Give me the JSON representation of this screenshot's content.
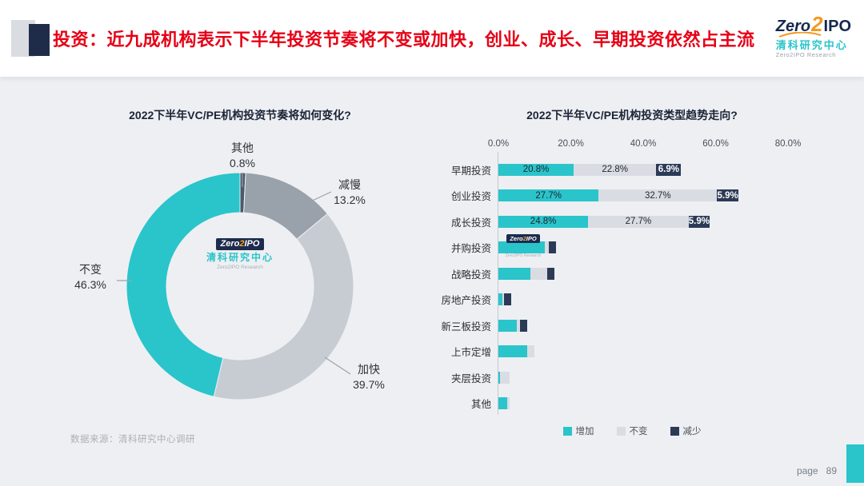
{
  "header": {
    "title": "投资：近九成机构表示下半年投资节奏将不变或加快，创业、成长、早期投资依然占主流",
    "logo": {
      "zero": "Zero",
      "two": "2",
      "ipo": "IPO",
      "cn": "清科研究中心",
      "en": "Zero2IPO Research"
    }
  },
  "footer": {
    "source": "数据来源：清科研究中心调研",
    "page_label": "page",
    "page_number": "89"
  },
  "colors": {
    "title_red": "#e60016",
    "teal": "#2ac4cb",
    "light_gray": "#d9dde3",
    "mid_gray": "#99a1aa",
    "navy": "#2c3a56",
    "slide_bg": "#edeff2"
  },
  "chart_data": [
    {
      "type": "pie",
      "subtype": "donut",
      "title": "2022下半年VC/PE机构投资节奏将如何变化?",
      "start_angle_deg": 0,
      "direction": "clockwise",
      "slices": [
        {
          "label": "其他",
          "value": 0.8,
          "pct_label": "0.8%",
          "color": "#4a5a6e"
        },
        {
          "label": "减慢",
          "value": 13.2,
          "pct_label": "13.2%",
          "color": "#99a1aa"
        },
        {
          "label": "加快",
          "value": 39.7,
          "pct_label": "39.7%",
          "color": "#c7ccd3"
        },
        {
          "label": "不变",
          "value": 46.3,
          "pct_label": "46.3%",
          "color": "#2ac4cb"
        }
      ]
    },
    {
      "type": "bar",
      "orientation": "horizontal",
      "stacked": true,
      "title": "2022下半年VC/PE机构投资类型趋势走向?",
      "x_axis": {
        "ticks": [
          "0.0%",
          "20.0%",
          "40.0%",
          "60.0%",
          "80.0%"
        ],
        "max": 80
      },
      "legend": [
        "增加",
        "不变",
        "减少"
      ],
      "series_colors": [
        "#2ac4cb",
        "#d9dde3",
        "#2c3a56"
      ],
      "categories": [
        "早期投资",
        "创业投资",
        "成长投资",
        "并购投资",
        "战略投资",
        "房地产投资",
        "新三板投资",
        "上市定增",
        "夹层投资",
        "其他"
      ],
      "series": [
        {
          "name": "增加",
          "values": [
            20.8,
            27.7,
            24.8,
            12.9,
            8.9,
            1.0,
            5.0,
            7.9,
            0.5,
            2.5
          ]
        },
        {
          "name": "不变",
          "values": [
            22.8,
            32.7,
            27.7,
            1.0,
            4.5,
            0.5,
            1.0,
            2.0,
            2.5,
            0.5
          ]
        },
        {
          "name": "减少",
          "values": [
            6.9,
            5.9,
            5.9,
            2.0,
            2.0,
            2.0,
            2.0,
            0,
            0,
            0
          ]
        }
      ],
      "bar_labels": [
        [
          "20.8%",
          "22.8%",
          "6.9%"
        ],
        [
          "27.7%",
          "32.7%",
          "5.9%"
        ],
        [
          "24.8%",
          "27.7%",
          "5.9%"
        ],
        null,
        null,
        null,
        null,
        null,
        null,
        null
      ]
    }
  ]
}
